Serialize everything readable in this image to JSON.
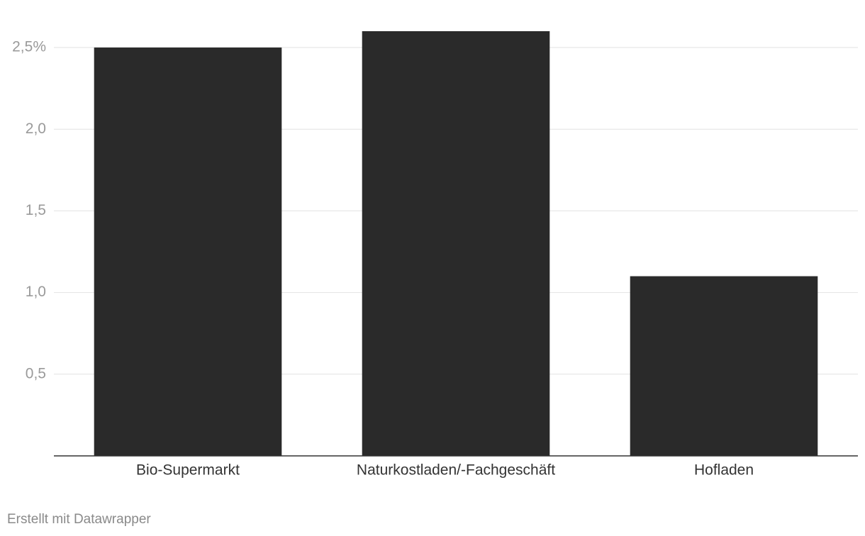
{
  "chart_data": {
    "type": "bar",
    "categories": [
      "Bio-Supermarkt",
      "Naturkostladen/-Fachgeschäft",
      "Hofladen"
    ],
    "values": [
      2.5,
      2.6,
      1.1
    ],
    "color": "#2a2a2a",
    "ylim": [
      0,
      2.6
    ],
    "yticks": [
      {
        "value": 0.5,
        "label": "0,5"
      },
      {
        "value": 1.0,
        "label": "1,0"
      },
      {
        "value": 1.5,
        "label": "1,5"
      },
      {
        "value": 2.0,
        "label": "2,0"
      },
      {
        "value": 2.5,
        "label": "2,5%"
      }
    ],
    "grid": true,
    "credit": "Erstellt mit Datawrapper"
  }
}
